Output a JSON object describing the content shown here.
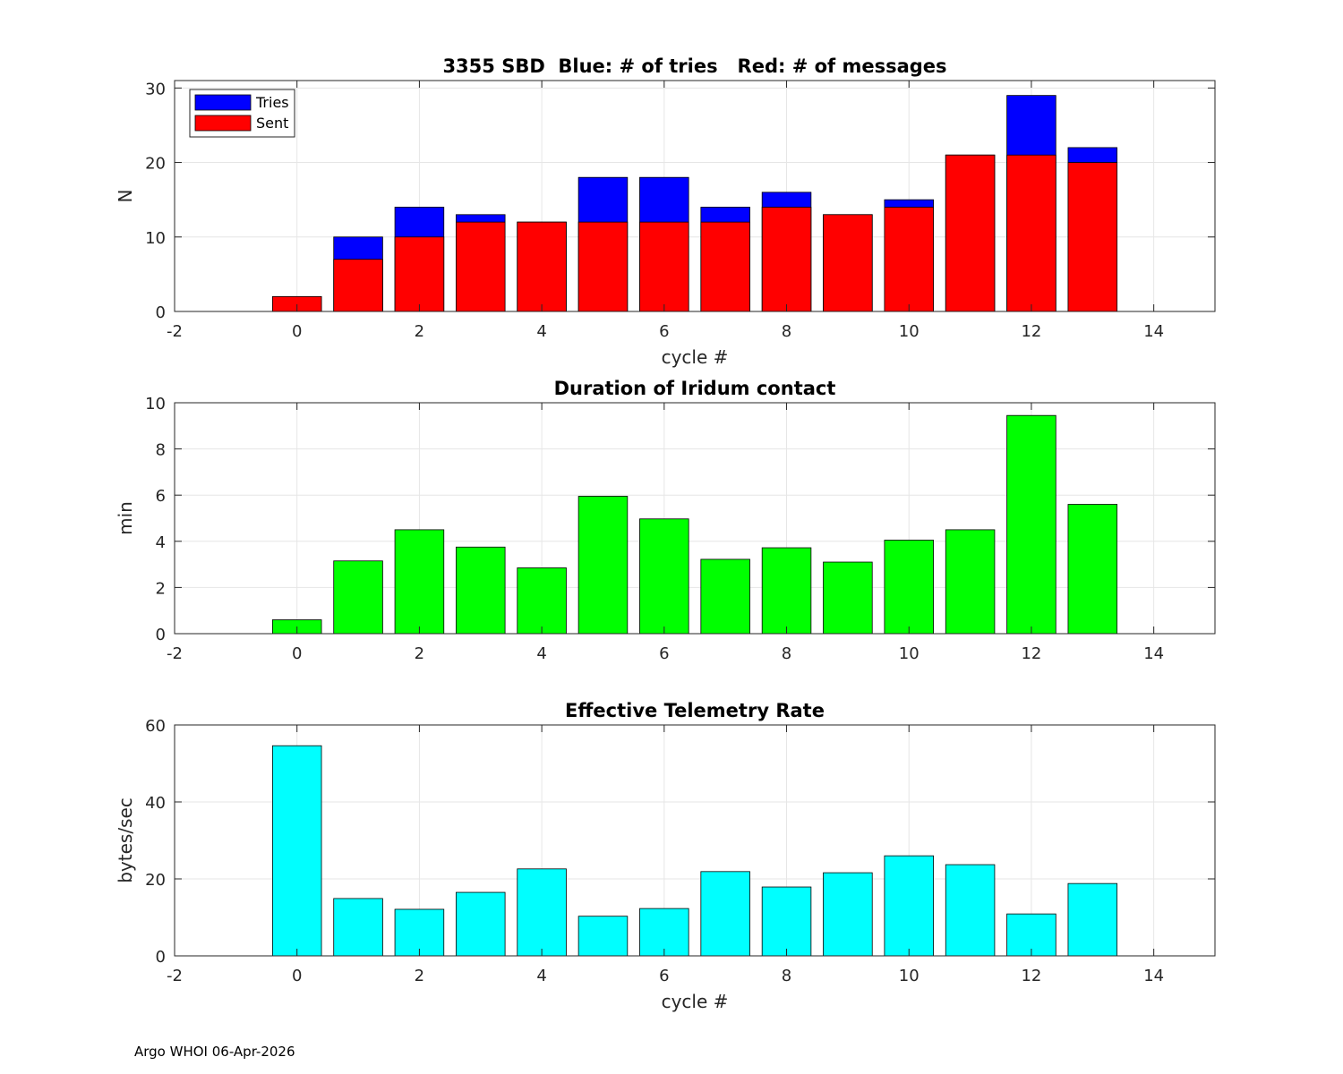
{
  "footer": "Argo WHOI 06-Apr-2026",
  "colors": {
    "tries": "#0000ff",
    "sent": "#ff0000",
    "duration": "#00ff00",
    "rate": "#00ffff",
    "grid": "#e6e6e6",
    "axis": "#262626"
  },
  "chart_data": [
    {
      "type": "bar",
      "title": "3355 SBD  Blue: # of tries   Red: # of messages",
      "xlabel": "cycle #",
      "ylabel": "N",
      "xlim": [
        -2,
        15
      ],
      "ylim": [
        0,
        31
      ],
      "xticks": [
        -2,
        0,
        2,
        4,
        6,
        8,
        10,
        12,
        14
      ],
      "yticks": [
        0,
        10,
        20,
        30
      ],
      "grid": true,
      "legend": {
        "position": "top-left",
        "entries": [
          "Tries",
          "Sent"
        ]
      },
      "categories": [
        0,
        1,
        2,
        3,
        4,
        5,
        6,
        7,
        8,
        9,
        10,
        11,
        12,
        13
      ],
      "series": [
        {
          "name": "Tries",
          "color": "#0000ff",
          "values": [
            2,
            10,
            14,
            13,
            12,
            18,
            18,
            14,
            16,
            13,
            15,
            21,
            29,
            22
          ]
        },
        {
          "name": "Sent",
          "color": "#ff0000",
          "values": [
            2,
            7,
            10,
            12,
            12,
            12,
            12,
            12,
            14,
            13,
            14,
            21,
            21,
            20
          ]
        }
      ]
    },
    {
      "type": "bar",
      "title": "Duration of Iridum contact",
      "xlabel": "",
      "ylabel": "min",
      "xlim": [
        -2,
        15
      ],
      "ylim": [
        0,
        10
      ],
      "xticks": [
        -2,
        0,
        2,
        4,
        6,
        8,
        10,
        12,
        14
      ],
      "yticks": [
        0,
        2,
        4,
        6,
        8,
        10
      ],
      "grid": true,
      "categories": [
        0,
        1,
        2,
        3,
        4,
        5,
        6,
        7,
        8,
        9,
        10,
        11,
        12,
        13
      ],
      "series": [
        {
          "name": "Duration",
          "color": "#00ff00",
          "values": [
            0.6,
            3.15,
            4.5,
            3.75,
            2.85,
            5.95,
            4.97,
            3.22,
            3.72,
            3.1,
            4.05,
            4.5,
            9.45,
            5.6
          ]
        }
      ]
    },
    {
      "type": "bar",
      "title": "Effective Telemetry Rate",
      "xlabel": "cycle #",
      "ylabel": "bytes/sec",
      "xlim": [
        -2,
        15
      ],
      "ylim": [
        0,
        60
      ],
      "xticks": [
        -2,
        0,
        2,
        4,
        6,
        8,
        10,
        12,
        14
      ],
      "yticks": [
        0,
        20,
        40,
        60
      ],
      "grid": true,
      "categories": [
        0,
        1,
        2,
        3,
        4,
        5,
        6,
        7,
        8,
        9,
        10,
        11,
        12,
        13
      ],
      "series": [
        {
          "name": "Rate",
          "color": "#00ffff",
          "values": [
            54.6,
            14.9,
            12.1,
            16.5,
            22.6,
            10.3,
            12.3,
            21.9,
            17.9,
            21.6,
            26.0,
            23.7,
            10.9,
            18.8
          ]
        }
      ]
    }
  ]
}
